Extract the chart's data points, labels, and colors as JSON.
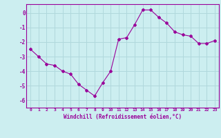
{
  "x": [
    0,
    1,
    2,
    3,
    4,
    5,
    6,
    7,
    8,
    9,
    10,
    11,
    12,
    13,
    14,
    15,
    16,
    17,
    18,
    19,
    20,
    21,
    22,
    23
  ],
  "y": [
    -2.5,
    -3.0,
    -3.5,
    -3.6,
    -4.0,
    -4.2,
    -4.9,
    -5.3,
    -5.7,
    -4.8,
    -4.0,
    -1.8,
    -1.7,
    -0.8,
    0.2,
    0.2,
    -0.3,
    -0.7,
    -1.3,
    -1.5,
    -1.6,
    -2.1,
    -2.1,
    -1.9
  ],
  "line_color": "#990099",
  "marker": "D",
  "marker_size": 2,
  "bg_color": "#cceef0",
  "grid_color": "#b0d8dc",
  "xlabel": "Windchill (Refroidissement éolien,°C)",
  "xlabel_color": "#990099",
  "tick_color": "#990099",
  "spine_color": "#990099",
  "ylim": [
    -6.5,
    0.6
  ],
  "xlim": [
    -0.5,
    23.5
  ],
  "yticks": [
    0,
    -1,
    -2,
    -3,
    -4,
    -5,
    -6
  ],
  "ytick_labels": [
    "0",
    "-1",
    "-2",
    "-3",
    "-4",
    "-5",
    "-6"
  ],
  "xticks": [
    0,
    1,
    2,
    3,
    4,
    5,
    6,
    7,
    8,
    9,
    10,
    11,
    12,
    13,
    14,
    15,
    16,
    17,
    18,
    19,
    20,
    21,
    22,
    23
  ],
  "xtick_labels": [
    "0",
    "1",
    "2",
    "3",
    "4",
    "5",
    "6",
    "7",
    "8",
    "9",
    "10",
    "11",
    "12",
    "13",
    "14",
    "15",
    "16",
    "17",
    "18",
    "19",
    "20",
    "21",
    "22",
    "23"
  ]
}
